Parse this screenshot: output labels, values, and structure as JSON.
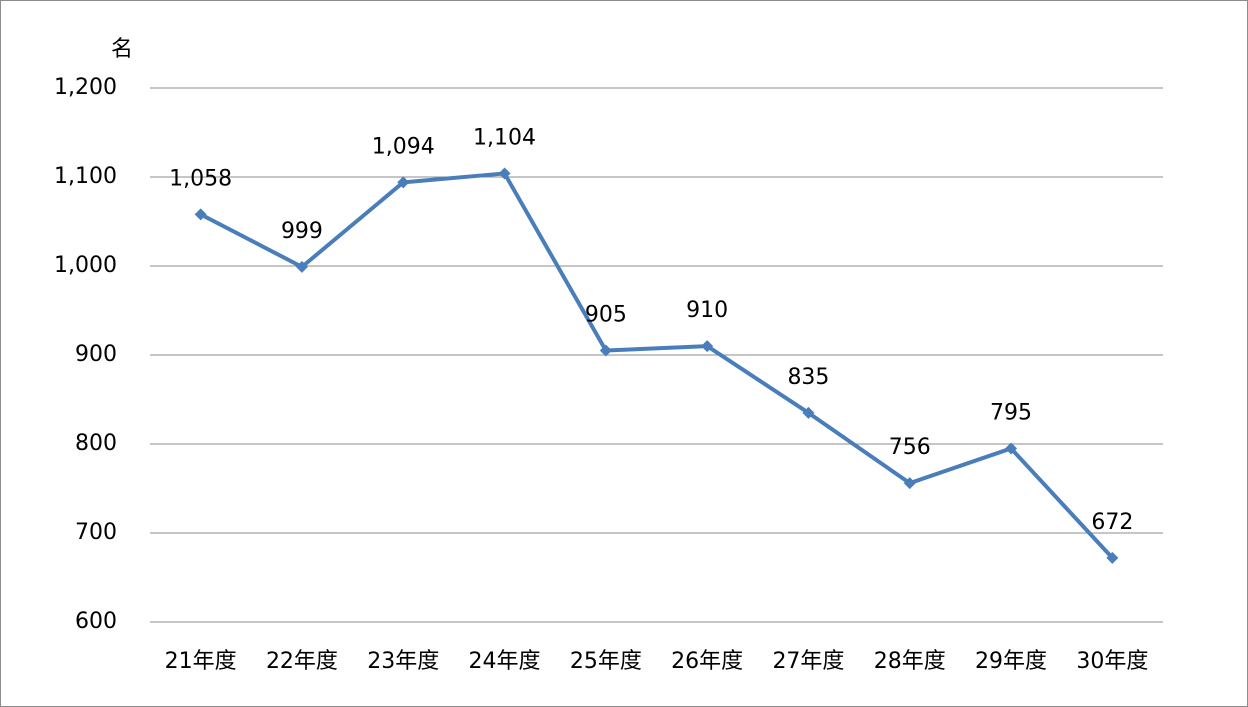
{
  "chart_data": {
    "type": "line",
    "y_unit": "名",
    "categories": [
      "21年度",
      "22年度",
      "23年度",
      "24年度",
      "25年度",
      "26年度",
      "27年度",
      "28年度",
      "29年度",
      "30年度"
    ],
    "series": [
      {
        "color": "#4a7ebb",
        "values": [
          1058,
          999,
          1094,
          1104,
          905,
          910,
          835,
          756,
          795,
          672
        ],
        "value_labels": [
          "1,058",
          "999",
          "1,094",
          "1,104",
          "905",
          "910",
          "835",
          "756",
          "795",
          "672"
        ]
      }
    ],
    "ylim": [
      600,
      1200
    ],
    "yticks": [
      600,
      700,
      800,
      900,
      {
        "value": 1000,
        "label": "1,000"
      },
      {
        "value": 1100,
        "label": "1,100"
      },
      {
        "value": 1200,
        "label": "1,200"
      }
    ],
    "grid": true,
    "marker": "diamond"
  }
}
